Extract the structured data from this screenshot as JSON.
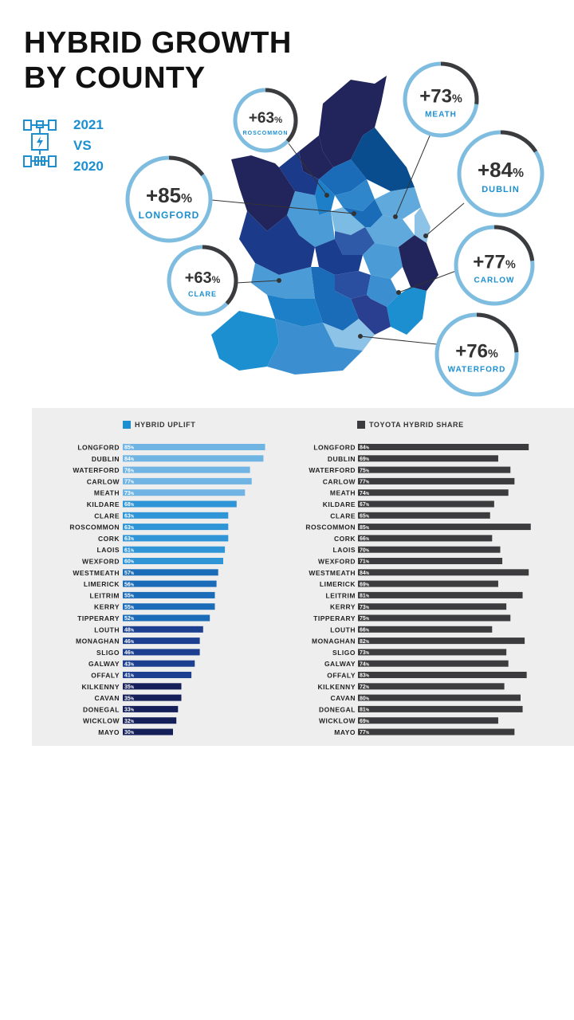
{
  "title": {
    "line1": "HYBRID GROWTH",
    "line2": "BY COUNTY"
  },
  "comparison": {
    "year_current": "2021",
    "vs": "VS",
    "year_previous": "2020"
  },
  "colors": {
    "accent": "#1b8fd0",
    "dark": "#3c3c3e",
    "ring": "#7fbde0"
  },
  "callouts": [
    {
      "value": "+85",
      "unit": "%",
      "county": "LONGFORD"
    },
    {
      "value": "+63",
      "unit": "%",
      "county": "ROSCOMMON"
    },
    {
      "value": "+73",
      "unit": "%",
      "county": "MEATH"
    },
    {
      "value": "+84",
      "unit": "%",
      "county": "DUBLIN"
    },
    {
      "value": "+63",
      "unit": "%",
      "county": "CLARE"
    },
    {
      "value": "+77",
      "unit": "%",
      "county": "CARLOW"
    },
    {
      "value": "+76",
      "unit": "%",
      "county": "WATERFORD"
    }
  ],
  "legend": {
    "uplift": "HYBRID UPLIFT",
    "share": "TOYOTA HYBRID SHARE"
  },
  "chart_data": [
    {
      "type": "bar",
      "title": "HYBRID UPLIFT",
      "unit": "%",
      "categories": [
        "LONGFORD",
        "DUBLIN",
        "WATERFORD",
        "CARLOW",
        "MEATH",
        "KILDARE",
        "CLARE",
        "ROSCOMMON",
        "CORK",
        "LAOIS",
        "WEXFORD",
        "WESTMEATH",
        "LIMERICK",
        "LEITRIM",
        "KERRY",
        "TIPPERARY",
        "LOUTH",
        "MONAGHAN",
        "SLIGO",
        "GALWAY",
        "OFFALY",
        "KILKENNY",
        "CAVAN",
        "DONEGAL",
        "WICKLOW",
        "MAYO"
      ],
      "values": [
        85,
        84,
        76,
        77,
        73,
        68,
        63,
        63,
        63,
        61,
        60,
        57,
        56,
        55,
        55,
        52,
        48,
        46,
        46,
        43,
        41,
        35,
        35,
        33,
        32,
        30
      ]
    },
    {
      "type": "bar",
      "title": "TOYOTA HYBRID SHARE",
      "unit": "%",
      "categories": [
        "LONGFORD",
        "DUBLIN",
        "WATERFORD",
        "CARLOW",
        "MEATH",
        "KILDARE",
        "CLARE",
        "ROSCOMMON",
        "CORK",
        "LAOIS",
        "WEXFORD",
        "WESTMEATH",
        "LIMERICK",
        "LEITRIM",
        "KERRY",
        "TIPPERARY",
        "LOUTH",
        "MONAGHAN",
        "SLIGO",
        "GALWAY",
        "OFFALY",
        "KILKENNY",
        "CAVAN",
        "DONEGAL",
        "WICKLOW",
        "MAYO"
      ],
      "values": [
        84,
        69,
        75,
        77,
        74,
        67,
        65,
        85,
        66,
        70,
        71,
        84,
        69,
        81,
        73,
        75,
        66,
        82,
        73,
        74,
        83,
        72,
        80,
        81,
        69,
        77
      ]
    }
  ]
}
